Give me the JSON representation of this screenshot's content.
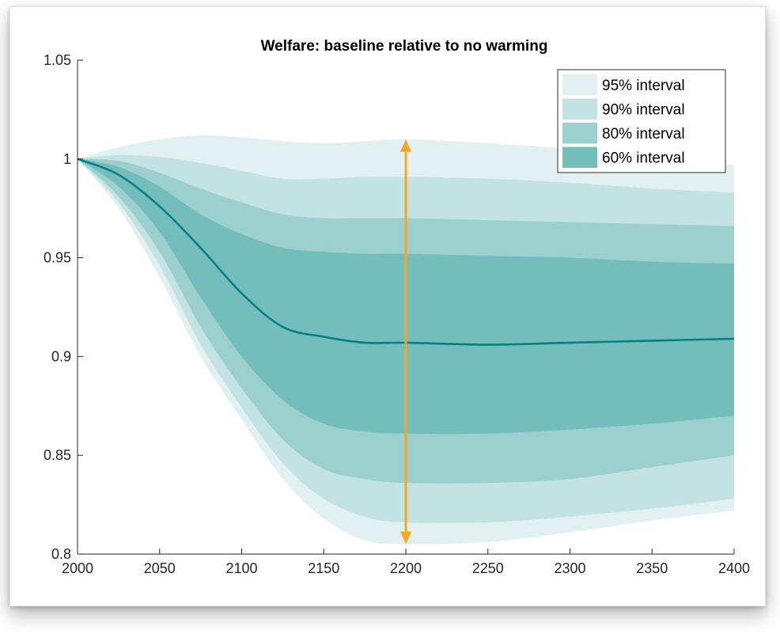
{
  "chart_data": {
    "type": "area",
    "title": "Welfare: baseline relative to no warming",
    "xlabel": "",
    "ylabel": "",
    "xlim": [
      2000,
      2400
    ],
    "ylim": [
      0.8,
      1.05
    ],
    "x_ticks": [
      "2000",
      "2050",
      "2100",
      "2150",
      "2200",
      "2250",
      "2300",
      "2350",
      "2400"
    ],
    "y_ticks": [
      "0.8",
      "0.85",
      "0.9",
      "0.95",
      "1",
      "1.05"
    ],
    "grid": false,
    "legend_position": "top-right",
    "x": [
      2000,
      2025,
      2050,
      2075,
      2100,
      2125,
      2150,
      2175,
      2200,
      2250,
      2300,
      2350,
      2400
    ],
    "median": [
      1.0,
      0.992,
      0.976,
      0.955,
      0.932,
      0.915,
      0.91,
      0.907,
      0.907,
      0.906,
      0.907,
      0.908,
      0.909
    ],
    "bands": [
      {
        "name": "95% interval",
        "color": "#e1f1f1",
        "upper": [
          1.0,
          1.006,
          1.01,
          1.012,
          1.011,
          1.009,
          1.008,
          1.009,
          1.01,
          1.008,
          1.005,
          1.0,
          0.997
        ],
        "lower": [
          1.0,
          0.975,
          0.94,
          0.9,
          0.868,
          0.838,
          0.818,
          0.807,
          0.805,
          0.806,
          0.811,
          0.817,
          0.822
        ]
      },
      {
        "name": "90% interval",
        "color": "#c3e3e2",
        "upper": [
          1.0,
          1.002,
          1.001,
          0.998,
          0.994,
          0.99,
          0.99,
          0.991,
          0.991,
          0.99,
          0.988,
          0.985,
          0.983
        ],
        "lower": [
          1.0,
          0.978,
          0.946,
          0.906,
          0.874,
          0.846,
          0.828,
          0.819,
          0.816,
          0.816,
          0.819,
          0.823,
          0.828
        ]
      },
      {
        "name": "80% interval",
        "color": "#9cd0cf",
        "upper": [
          1.0,
          0.999,
          0.993,
          0.985,
          0.978,
          0.972,
          0.97,
          0.97,
          0.97,
          0.969,
          0.968,
          0.967,
          0.966
        ],
        "lower": [
          1.0,
          0.981,
          0.953,
          0.915,
          0.884,
          0.858,
          0.843,
          0.838,
          0.836,
          0.836,
          0.838,
          0.844,
          0.85
        ]
      },
      {
        "name": "60% interval",
        "color": "#73bebd",
        "upper": [
          1.0,
          0.996,
          0.986,
          0.972,
          0.962,
          0.955,
          0.953,
          0.952,
          0.952,
          0.951,
          0.95,
          0.948,
          0.947
        ],
        "lower": [
          1.0,
          0.986,
          0.963,
          0.93,
          0.9,
          0.878,
          0.866,
          0.862,
          0.861,
          0.861,
          0.863,
          0.866,
          0.87
        ]
      }
    ],
    "median_color": "#087f82",
    "annotation": {
      "type": "double-arrow",
      "x": 2200,
      "y_from": 1.01,
      "y_to": 0.805,
      "color": "#f5a623"
    }
  }
}
